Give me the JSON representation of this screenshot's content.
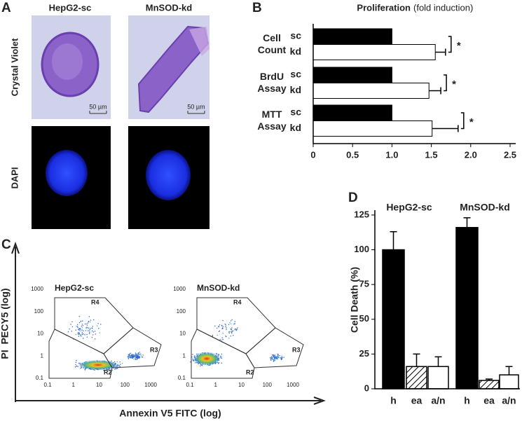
{
  "panel_labels": [
    "A",
    "B",
    "C",
    "D"
  ],
  "panel_a": {
    "columns": [
      "HepG2-sc",
      "MnSOD-kd"
    ],
    "rows": [
      "Crystal Violet",
      "DAPI"
    ],
    "scale_bar": "50 µm"
  },
  "chart_data": [
    {
      "type": "hbar",
      "title": "Proliferation",
      "subtitle": "(fold induction)",
      "categories": [
        "Cell Count",
        "BrdU Assay",
        "MTT Assay"
      ],
      "series": [
        {
          "name": "sc",
          "color": "#000000",
          "values": [
            1,
            1,
            1
          ]
        },
        {
          "name": "kd",
          "color": "#ffffff",
          "values": [
            1.55,
            1.47,
            1.51
          ],
          "errors": [
            0.13,
            0.15,
            0.33
          ]
        }
      ],
      "annotations": [
        "*",
        "*",
        "*"
      ],
      "xlim": [
        0,
        2.5
      ],
      "xticks": [
        0,
        0.5,
        {
          "value": 1,
          "label": "1.0"
        },
        1.5,
        {
          "value": 2,
          "label": "2.0"
        },
        2.5
      ]
    },
    {
      "type": "flow",
      "xlabel": "Annexin V5 FITC (log)",
      "ylabel": "PI  PECY5 (log)",
      "log": true,
      "plots": [
        "HepG2-sc",
        "MnSOD-kd"
      ],
      "regions": [
        "R2",
        "R3",
        "R4"
      ],
      "xlim": [
        0.1,
        1000
      ],
      "ylim": [
        0.1,
        1000
      ],
      "xticks": [
        0.1,
        1,
        10,
        100,
        1000
      ],
      "yticks": [
        0.1,
        1,
        10,
        100,
        1000
      ]
    },
    {
      "type": "bar",
      "ylabel": "Cell Death (%)",
      "groups": [
        "HepG2-sc",
        "MnSOD-kd"
      ],
      "categories": [
        "h",
        "ea",
        "a/n",
        "h",
        "ea",
        "a/n"
      ],
      "values": [
        100,
        16,
        16,
        116,
        6,
        10
      ],
      "errors": [
        13,
        9,
        7,
        7,
        1,
        6
      ],
      "fills": [
        "solid",
        "hatched",
        "open",
        "solid",
        "hatched",
        "open"
      ],
      "color": "#000000",
      "ylim": [
        0,
        130
      ],
      "yticks": [
        0,
        25,
        50,
        75,
        100,
        125
      ]
    }
  ]
}
